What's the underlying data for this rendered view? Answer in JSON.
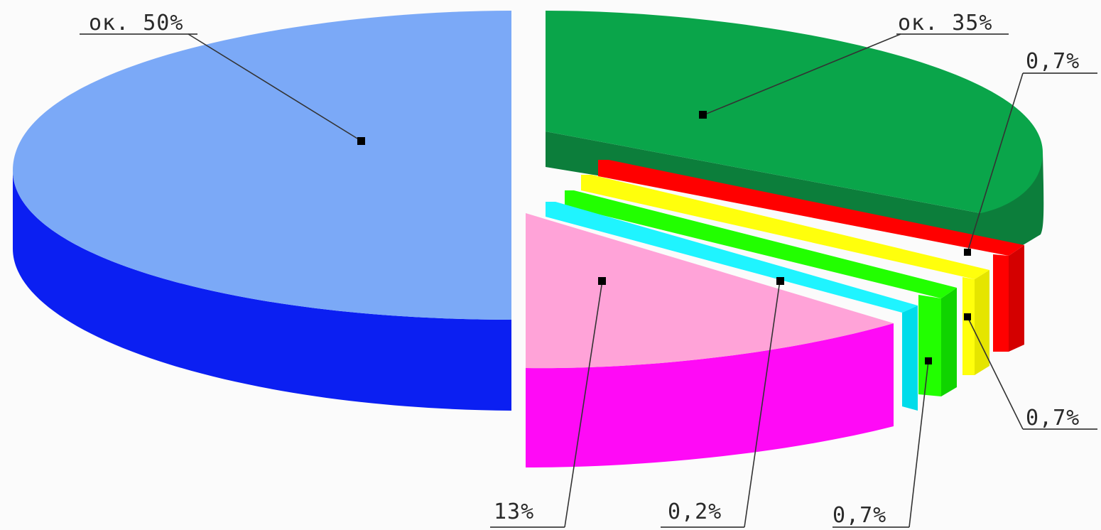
{
  "chart_data": {
    "type": "pie",
    "style": "3d-exploded",
    "slices": [
      {
        "label": "ок. 50%",
        "value": 50,
        "top": "#7ba9f7",
        "side": "#0b1ff2"
      },
      {
        "label": "ок. 35%",
        "value": 35,
        "top": "#0aa54a",
        "side": "#0c7e3b"
      },
      {
        "label": "0,7%",
        "value": 0.7,
        "top": "#ff0000",
        "side": "#d40000"
      },
      {
        "label": "0,7%",
        "value": 0.7,
        "top": "#ffff0c",
        "side": "#e5e500"
      },
      {
        "label": "0,7%",
        "value": 0.7,
        "top": "#22ff00",
        "side": "#10d400"
      },
      {
        "label": "0,2%",
        "value": 0.2,
        "top": "#1ff4ff",
        "side": "#00dcea"
      },
      {
        "label": "13%",
        "value": 13,
        "top": "#ffa3d8",
        "side": "#ff0af6"
      }
    ]
  }
}
